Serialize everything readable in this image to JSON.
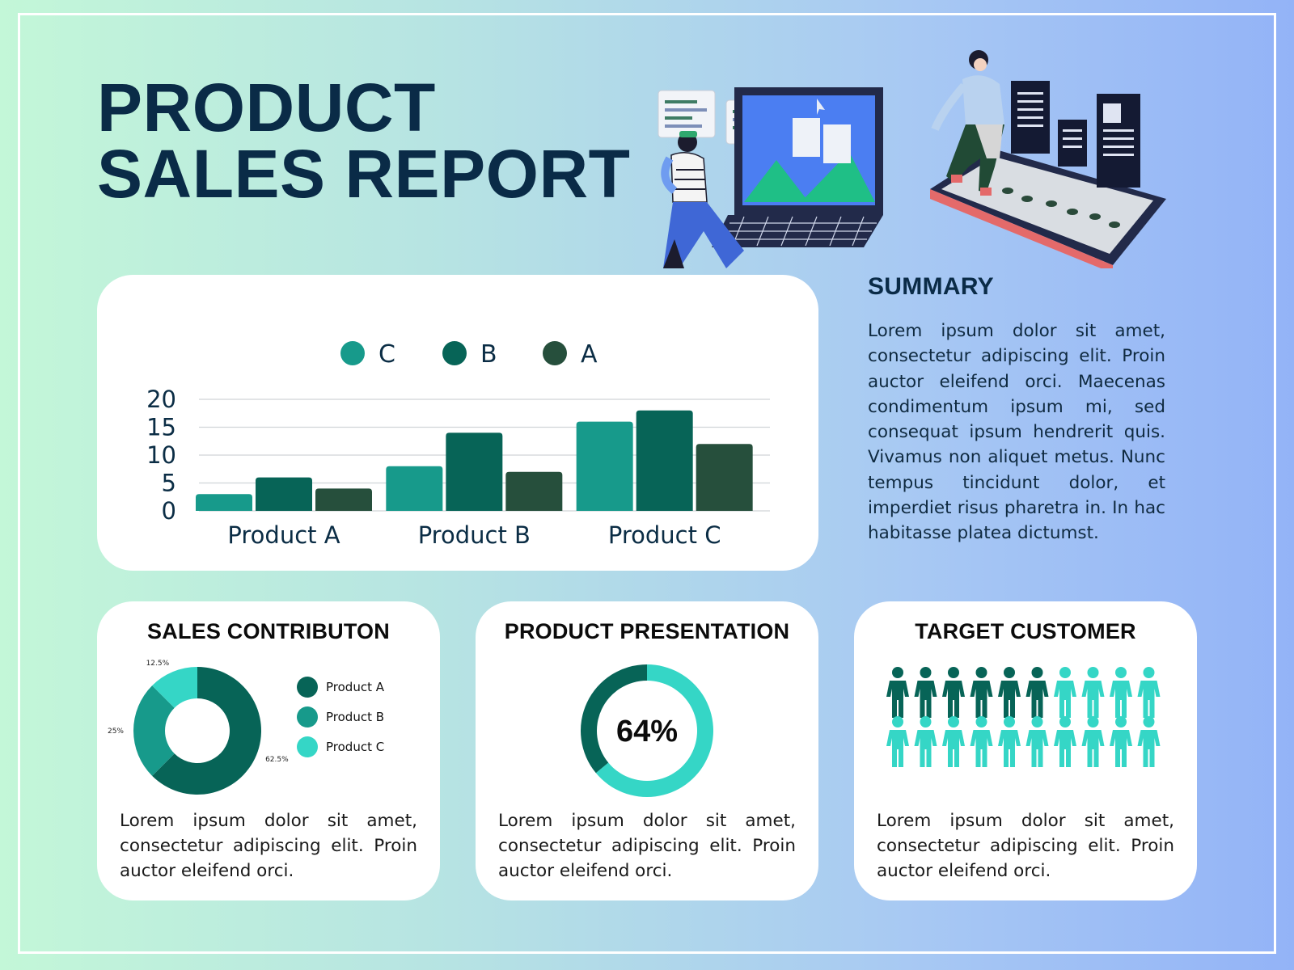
{
  "header": {
    "title_line1": "PRODUCT",
    "title_line2": "SALES REPORT"
  },
  "chart_data": [
    {
      "type": "bar",
      "categories": [
        "Product A",
        "Product B",
        "Product C"
      ],
      "series": [
        {
          "name": "C",
          "color": "#179a8b",
          "values": [
            3,
            8,
            16
          ]
        },
        {
          "name": "B",
          "color": "#076457",
          "values": [
            6,
            14,
            18
          ]
        },
        {
          "name": "A",
          "color": "#264f3c",
          "values": [
            4,
            7,
            12
          ]
        }
      ],
      "yticks": [
        0,
        5,
        10,
        15,
        20
      ],
      "ylim": [
        0,
        20
      ],
      "grid": true,
      "legend_position": "top"
    },
    {
      "type": "pie",
      "labels": [
        "Product A",
        "Product B",
        "Product C"
      ],
      "values": [
        62.5,
        25,
        12.5
      ],
      "value_labels": [
        "62.5%",
        "25%",
        "12.5%"
      ],
      "colors": [
        "#076457",
        "#179a8b",
        "#35d6c6"
      ],
      "legend_position": "right"
    },
    {
      "type": "pie",
      "values": [
        64,
        36
      ],
      "center_label": "64%",
      "colors": [
        "#35d6c6",
        "#076457"
      ]
    }
  ],
  "summary": {
    "heading": "SUMMARY",
    "text": "Lorem ipsum dolor sit amet, consectetur adipiscing elit. Proin auctor eleifend orci. Maecenas condimentum ipsum mi, sed consequat ipsum hendrerit quis. Vivamus non aliquet metus. Nunc tempus tincidunt dolor, et imperdiet risus pharetra in. In hac habitasse platea dictumst."
  },
  "cards": {
    "sales": {
      "heading": "SALES CONTRIBUTON",
      "text": "Lorem ipsum dolor sit amet, consectetur adipiscing elit. Proin auctor eleifend orci."
    },
    "presentation": {
      "heading": "PRODUCT PRESENTATION",
      "text": "Lorem ipsum dolor sit amet, consectetur adipiscing elit. Proin auctor eleifend orci."
    },
    "target": {
      "heading": "TARGET CUSTOMER",
      "text": "Lorem ipsum dolor sit amet, consectetur adipiscing elit. Proin auctor eleifend orci.",
      "people_total": 20,
      "people_highlighted": 6,
      "highlight_color": "#076457",
      "other_color": "#35d6c6",
      "icon": "person-icon"
    }
  },
  "illustrations": {
    "left": "person-at-laptop-illustration",
    "right": "person-walking-on-tablet-illustration"
  }
}
